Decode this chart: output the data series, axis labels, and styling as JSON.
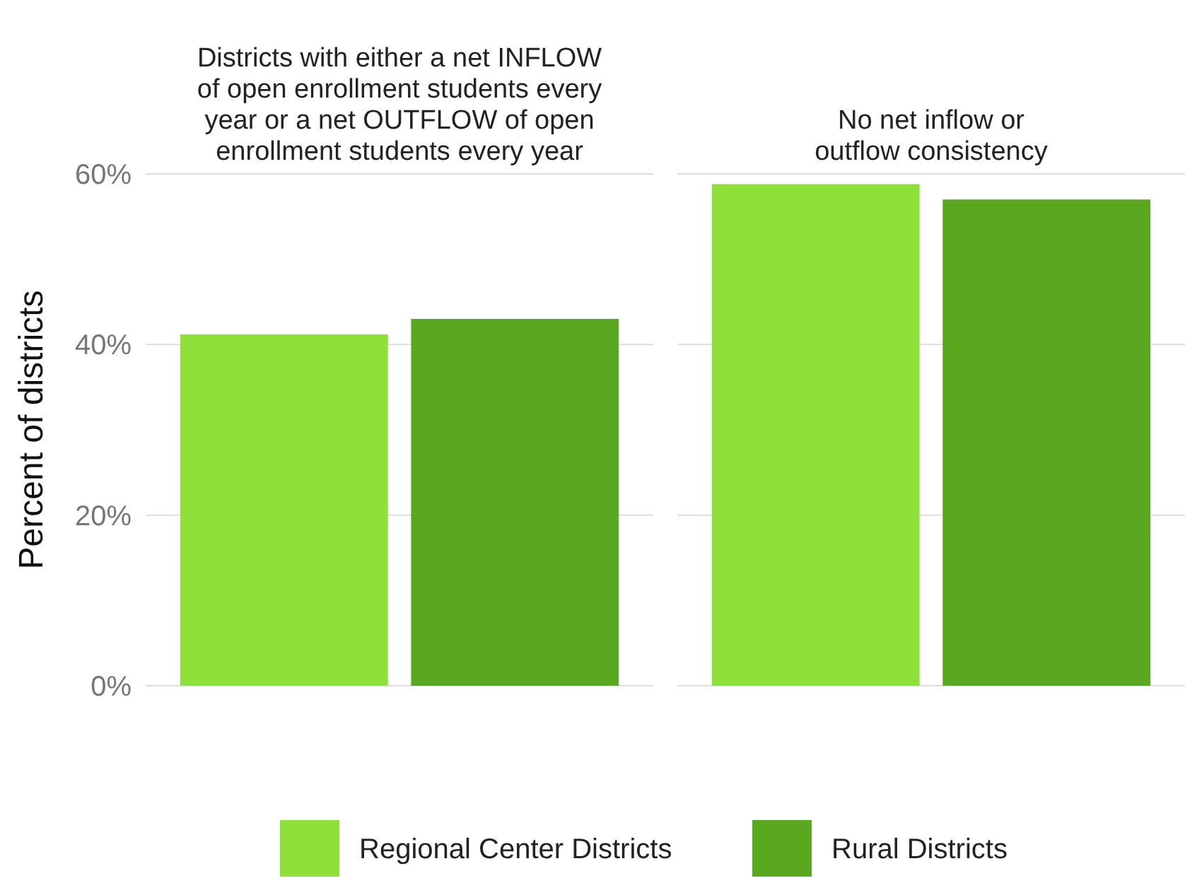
{
  "chart_data": {
    "type": "bar",
    "ylabel": "Percent of districts",
    "categories": [
      "Districts with either a net INFLOW\nof open enrollment students every\nyear or a net OUTFLOW of open\nenrollment students every year",
      "No net inflow or\noutflow consistency"
    ],
    "series": [
      {
        "name": "Regional Center Districts",
        "color": "#8fe03a",
        "values": [
          41.2,
          58.8
        ]
      },
      {
        "name": "Rural Districts",
        "color": "#5aa820",
        "values": [
          43,
          57
        ]
      }
    ],
    "ylim": [
      0,
      60
    ],
    "yticks": [
      {
        "value": 0,
        "label": "0%"
      },
      {
        "value": 20,
        "label": "20%"
      },
      {
        "value": 40,
        "label": "40%"
      },
      {
        "value": 60,
        "label": "60%"
      }
    ],
    "grid": "y",
    "legend": "bottom"
  }
}
